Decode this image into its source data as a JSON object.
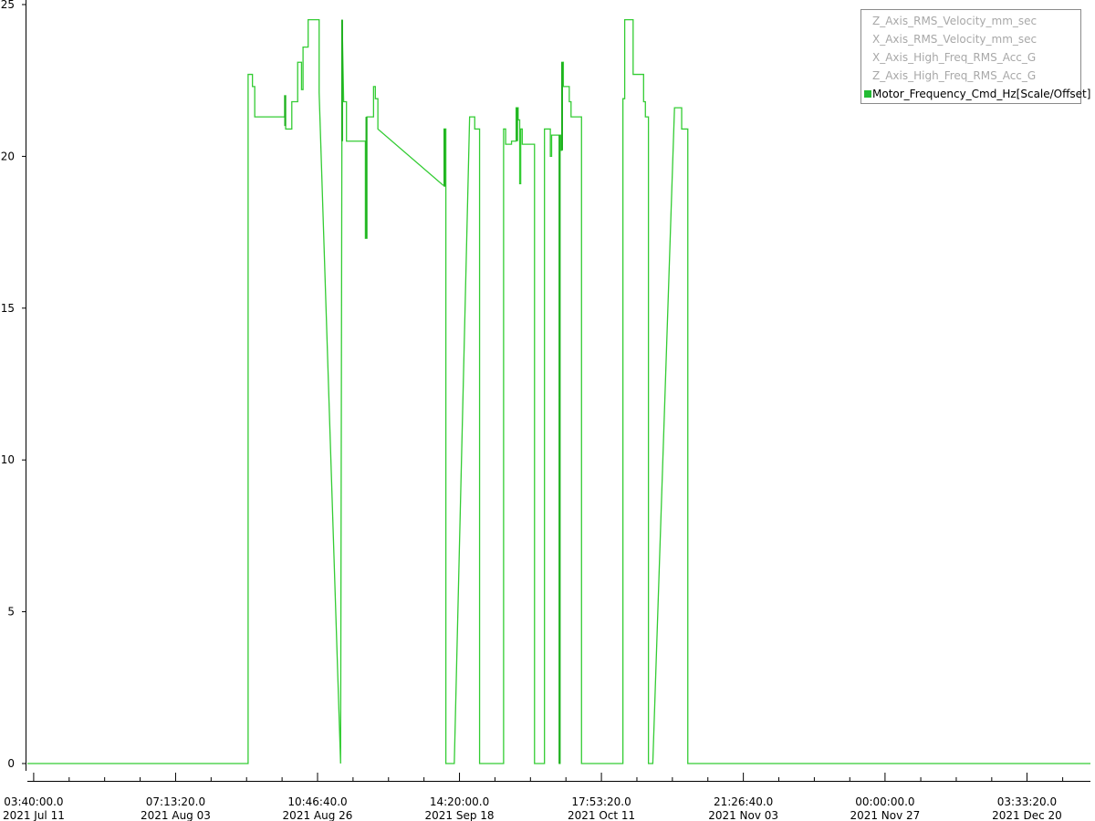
{
  "chart_data": {
    "type": "line",
    "title": "",
    "xlabel": "",
    "ylabel": "",
    "x_is_time": true,
    "xlim": [
      "2021-07-10T03:00:00",
      "2021-12-30T12:00:00"
    ],
    "ylim": [
      0,
      25
    ],
    "y_ticks": [
      0,
      5,
      10,
      15,
      20,
      25
    ],
    "x_ticks": [
      {
        "time": "2021-07-11T03:40:00",
        "label_time": "03:40:00.0",
        "label_date": "2021 Jul 11"
      },
      {
        "time": "2021-08-03T07:13:20",
        "label_time": "07:13:20.0",
        "label_date": "2021 Aug 03"
      },
      {
        "time": "2021-08-26T10:46:40",
        "label_time": "10:46:40.0",
        "label_date": "2021 Aug 26"
      },
      {
        "time": "2021-09-18T14:20:00",
        "label_time": "14:20:00.0",
        "label_date": "2021 Sep 18"
      },
      {
        "time": "2021-10-11T17:53:20",
        "label_time": "17:53:20.0",
        "label_date": "2021 Oct 11"
      },
      {
        "time": "2021-11-03T21:26:40",
        "label_time": "21:26:40.0",
        "label_date": "2021 Nov 03"
      },
      {
        "time": "2021-11-27T00:00:00",
        "label_time": "00:00:00.0",
        "label_date": "2021 Nov 27"
      },
      {
        "time": "2021-12-20T03:33:20",
        "label_time": "03:33:20.0",
        "label_date": "2021 Dec 20"
      }
    ],
    "grid": false,
    "legend_position": "top-right",
    "legend": [
      {
        "name": "Z_Axis_RMS_Velocity_mm_sec",
        "active": false
      },
      {
        "name": "X_Axis_RMS_Velocity_mm_sec",
        "active": false
      },
      {
        "name": "X_Axis_High_Freq_RMS_Acc_G",
        "active": false
      },
      {
        "name": "Z_Axis_High_Freq_RMS_Acc_G",
        "active": false
      },
      {
        "name": "Motor_Frequency_Cmd_Hz[Scale/Offset]",
        "active": true,
        "color": "#22bb33"
      }
    ],
    "series": [
      {
        "name": "Motor_Frequency_Cmd_Hz[Scale/Offset]",
        "color": "#33cc33",
        "points": [
          [
            "2021-07-10T03:00:00",
            0.0
          ],
          [
            "2021-08-15T03:00:00",
            0.0
          ],
          [
            "2021-08-15T03:00:00",
            22.7
          ],
          [
            "2021-08-15T20:00:00",
            22.7
          ],
          [
            "2021-08-15T20:00:00",
            22.3
          ],
          [
            "2021-08-16T05:00:00",
            22.3
          ],
          [
            "2021-08-16T05:00:00",
            21.3
          ],
          [
            "2021-08-21T02:00:00",
            21.3
          ],
          [
            "2021-08-21T02:00:00",
            22.0
          ],
          [
            "2021-08-21T06:00:00",
            22.0
          ],
          [
            "2021-08-21T06:00:00",
            20.9
          ],
          [
            "2021-08-22T06:00:00",
            20.9
          ],
          [
            "2021-08-22T06:00:00",
            21.8
          ],
          [
            "2021-08-23T05:00:00",
            21.8
          ],
          [
            "2021-08-23T05:00:00",
            23.1
          ],
          [
            "2021-08-23T20:00:00",
            23.1
          ],
          [
            "2021-08-23T20:00:00",
            22.2
          ],
          [
            "2021-08-24T02:00:00",
            22.2
          ],
          [
            "2021-08-24T02:00:00",
            23.6
          ],
          [
            "2021-08-24T22:00:00",
            23.6
          ],
          [
            "2021-08-24T22:00:00",
            24.5
          ],
          [
            "2021-08-26T17:00:00",
            24.5
          ],
          [
            "2021-08-26T17:00:00",
            22.1
          ],
          [
            "2021-08-30T05:00:00",
            0.0
          ],
          [
            "2021-08-30T11:00:00",
            24.5
          ],
          [
            "2021-08-30T17:00:00",
            21.8
          ],
          [
            "2021-08-31T04:00:00",
            21.8
          ],
          [
            "2021-08-31T04:00:00",
            20.5
          ],
          [
            "2021-09-03T06:00:00",
            20.5
          ],
          [
            "2021-09-03T06:00:00",
            17.3
          ],
          [
            "2021-09-03T12:00:00",
            17.3
          ],
          [
            "2021-09-03T12:00:00",
            21.3
          ],
          [
            "2021-09-04T14:00:00",
            21.3
          ],
          [
            "2021-09-04T14:00:00",
            22.3
          ],
          [
            "2021-09-04T21:00:00",
            22.3
          ],
          [
            "2021-09-04T21:00:00",
            21.9
          ],
          [
            "2021-09-05T07:00:00",
            21.9
          ],
          [
            "2021-09-05T07:00:00",
            20.9
          ],
          [
            "2021-09-15T22:00:00",
            19.05
          ],
          [
            "2021-09-16T02:00:00",
            19.05
          ],
          [
            "2021-09-16T02:00:00",
            20.9
          ],
          [
            "2021-09-16T09:00:00",
            20.9
          ],
          [
            "2021-09-16T09:00:00",
            0.0
          ],
          [
            "2021-09-17T18:00:00",
            0.0
          ],
          [
            "2021-09-20T06:00:00",
            21.3
          ],
          [
            "2021-09-21T02:00:00",
            21.3
          ],
          [
            "2021-09-21T02:00:00",
            20.9
          ],
          [
            "2021-09-21T21:00:00",
            20.9
          ],
          [
            "2021-09-21T21:00:00",
            0.0
          ],
          [
            "2021-09-25T19:00:00",
            0.0
          ],
          [
            "2021-09-25T19:00:00",
            20.9
          ],
          [
            "2021-09-26T03:00:00",
            20.9
          ],
          [
            "2021-09-26T03:00:00",
            20.4
          ],
          [
            "2021-09-27T02:00:00",
            20.4
          ],
          [
            "2021-09-27T02:00:00",
            20.5
          ],
          [
            "2021-09-27T20:00:00",
            20.5
          ],
          [
            "2021-09-27T20:00:00",
            21.6
          ],
          [
            "2021-09-28T04:00:00",
            21.6
          ],
          [
            "2021-09-28T04:00:00",
            21.2
          ],
          [
            "2021-09-28T10:00:00",
            21.2
          ],
          [
            "2021-09-28T10:00:00",
            19.1
          ],
          [
            "2021-09-28T14:00:00",
            19.1
          ],
          [
            "2021-09-28T14:00:00",
            20.9
          ],
          [
            "2021-09-28T20:00:00",
            20.9
          ],
          [
            "2021-09-28T20:00:00",
            20.4
          ],
          [
            "2021-09-30T20:00:00",
            20.4
          ],
          [
            "2021-09-30T20:00:00",
            0.0
          ],
          [
            "2021-10-02T11:00:00",
            0.0
          ],
          [
            "2021-10-02T11:00:00",
            20.9
          ],
          [
            "2021-10-03T10:00:00",
            20.9
          ],
          [
            "2021-10-03T10:00:00",
            20.0
          ],
          [
            "2021-10-03T15:00:00",
            20.0
          ],
          [
            "2021-10-03T15:00:00",
            20.7
          ],
          [
            "2021-10-04T21:00:00",
            20.7
          ],
          [
            "2021-10-04T21:00:00",
            0.0
          ],
          [
            "2021-10-05T00:00:00",
            0.0
          ],
          [
            "2021-10-05T00:00:00",
            20.7
          ],
          [
            "2021-10-05T03:00:00",
            20.7
          ],
          [
            "2021-10-05T03:00:00",
            20.2
          ],
          [
            "2021-10-05T07:00:00",
            20.2
          ],
          [
            "2021-10-05T07:00:00",
            23.1
          ],
          [
            "2021-10-05T13:00:00",
            23.1
          ],
          [
            "2021-10-05T13:00:00",
            22.3
          ],
          [
            "2021-10-06T12:00:00",
            22.3
          ],
          [
            "2021-10-06T12:00:00",
            21.8
          ],
          [
            "2021-10-06T19:00:00",
            21.8
          ],
          [
            "2021-10-06T19:00:00",
            21.3
          ],
          [
            "2021-10-08T12:00:00",
            21.3
          ],
          [
            "2021-10-08T12:00:00",
            0.0
          ],
          [
            "2021-10-15T06:00:00",
            0.0
          ],
          [
            "2021-10-15T06:00:00",
            21.9
          ],
          [
            "2021-10-15T13:00:00",
            21.9
          ],
          [
            "2021-10-15T13:00:00",
            24.5
          ],
          [
            "2021-10-16T22:00:00",
            24.5
          ],
          [
            "2021-10-16T22:00:00",
            22.7
          ],
          [
            "2021-10-18T15:00:00",
            22.7
          ],
          [
            "2021-10-18T15:00:00",
            21.8
          ],
          [
            "2021-10-18T22:00:00",
            21.8
          ],
          [
            "2021-10-18T22:00:00",
            21.3
          ],
          [
            "2021-10-19T10:00:00",
            21.3
          ],
          [
            "2021-10-19T10:00:00",
            0.0
          ],
          [
            "2021-10-20T03:00:00",
            0.0
          ],
          [
            "2021-10-23T16:00:00",
            21.6
          ],
          [
            "2021-10-24T20:00:00",
            21.6
          ],
          [
            "2021-10-24T20:00:00",
            20.9
          ],
          [
            "2021-10-25T20:00:00",
            20.9
          ],
          [
            "2021-10-25T20:00:00",
            0.0
          ],
          [
            "2021-12-30T12:00:00",
            0.0
          ]
        ],
        "spikes": [
          [
            "2021-08-21T04:00:00",
            21.0,
            22.0
          ],
          [
            "2021-08-30T11:00:00",
            20.5,
            24.5
          ],
          [
            "2021-09-03T10:00:00",
            17.3,
            21.3
          ],
          [
            "2021-09-16T04:00:00",
            19.0,
            20.9
          ],
          [
            "2021-09-28T00:00:00",
            20.5,
            21.6
          ],
          [
            "2021-10-04T22:00:00",
            0.0,
            20.7
          ],
          [
            "2021-10-05T08:00:00",
            20.2,
            23.1
          ]
        ]
      }
    ]
  }
}
